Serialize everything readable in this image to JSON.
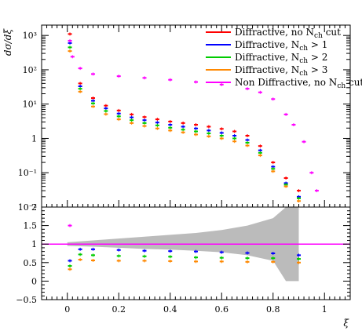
{
  "chart_data": {
    "type": "scatter",
    "top_panel": {
      "ylabel": "dσ/dξ",
      "y_scale": "log",
      "ylim": [
        0.01,
        2000
      ],
      "y_ticks": [
        {
          "value": 1000,
          "label": "10³"
        },
        {
          "value": 100,
          "label": "10²"
        },
        {
          "value": 10,
          "label": "10¹"
        },
        {
          "value": 1,
          "label": "1"
        },
        {
          "value": 0.1,
          "label": "10⁻¹"
        },
        {
          "value": 0.01,
          "label": "10⁻²"
        }
      ],
      "legend": {
        "placement": "top-right",
        "entries": [
          {
            "label": "Diffractive, no N",
            "sub": "ch",
            "suffix": " cut",
            "color": "#ff0000"
          },
          {
            "label": "Diffractive, N",
            "sub": "ch",
            "suffix": " > 1",
            "color": "#0000ff"
          },
          {
            "label": "Diffractive, N",
            "sub": "ch",
            "suffix": " > 2",
            "color": "#00cc00"
          },
          {
            "label": "Diffractive, N",
            "sub": "ch",
            "suffix": " > 3",
            "color": "#ff8800"
          },
          {
            "label": "Non Diffractive, no N",
            "sub": "ch",
            "suffix": " cut",
            "color": "#ff00ff"
          }
        ]
      },
      "series": [
        {
          "name": "Diffractive, no Nch cut",
          "color": "#ff0000",
          "x": [
            0.01,
            0.05,
            0.1,
            0.15,
            0.2,
            0.25,
            0.3,
            0.35,
            0.4,
            0.45,
            0.5,
            0.55,
            0.6,
            0.65,
            0.7,
            0.75,
            0.8,
            0.85,
            0.9
          ],
          "y": [
            1100,
            40,
            15,
            9,
            6.5,
            5,
            4.2,
            3.6,
            3.1,
            2.8,
            2.5,
            2.2,
            1.9,
            1.6,
            1.2,
            0.6,
            0.2,
            0.07,
            0.03
          ]
        },
        {
          "name": "Diffractive, Nch > 1",
          "color": "#0000ff",
          "x": [
            0.01,
            0.05,
            0.1,
            0.15,
            0.2,
            0.25,
            0.3,
            0.35,
            0.4,
            0.45,
            0.5,
            0.55,
            0.6,
            0.65,
            0.7,
            0.75,
            0.8,
            0.85,
            0.9
          ],
          "y": [
            600,
            33,
            12.5,
            7.5,
            5.3,
            4.1,
            3.4,
            2.9,
            2.5,
            2.2,
            1.95,
            1.7,
            1.45,
            1.2,
            0.9,
            0.45,
            0.15,
            0.05,
            0.02
          ]
        },
        {
          "name": "Diffractive, Nch > 2",
          "color": "#00cc00",
          "x": [
            0.01,
            0.05,
            0.1,
            0.15,
            0.2,
            0.25,
            0.3,
            0.35,
            0.4,
            0.45,
            0.5,
            0.55,
            0.6,
            0.65,
            0.7,
            0.75,
            0.8,
            0.85,
            0.9
          ],
          "y": [
            450,
            28,
            10.5,
            6.3,
            4.4,
            3.4,
            2.8,
            2.4,
            2.05,
            1.8,
            1.6,
            1.4,
            1.2,
            1.0,
            0.75,
            0.38,
            0.13,
            0.045,
            0.018
          ]
        },
        {
          "name": "Diffractive, Nch > 3",
          "color": "#ff8800",
          "x": [
            0.01,
            0.05,
            0.1,
            0.15,
            0.2,
            0.25,
            0.3,
            0.35,
            0.4,
            0.45,
            0.5,
            0.55,
            0.6,
            0.65,
            0.7,
            0.75,
            0.8,
            0.85,
            0.9
          ],
          "y": [
            350,
            23,
            8.5,
            5.1,
            3.6,
            2.8,
            2.3,
            1.95,
            1.7,
            1.5,
            1.3,
            1.15,
            1.0,
            0.82,
            0.62,
            0.32,
            0.11,
            0.04,
            0.015
          ]
        },
        {
          "name": "Non Diffractive, no Nch cut",
          "color": "#ff00ff",
          "x": [
            0.01,
            0.02,
            0.05,
            0.1,
            0.2,
            0.3,
            0.4,
            0.5,
            0.6,
            0.7,
            0.75,
            0.8,
            0.85,
            0.88,
            0.92,
            0.95,
            0.97
          ],
          "y": [
            700,
            240,
            110,
            75,
            65,
            58,
            51,
            44,
            37,
            28,
            22,
            14,
            5,
            2.5,
            0.8,
            0.1,
            0.03
          ]
        }
      ]
    },
    "ratio_panel": {
      "ylim": [
        -0.5,
        2
      ],
      "y_ticks": [
        {
          "value": -0.5,
          "label": "−0.5"
        },
        {
          "value": 0,
          "label": "0"
        },
        {
          "value": 0.5,
          "label": "0.5"
        },
        {
          "value": 1,
          "label": "1"
        },
        {
          "value": 1.5,
          "label": "1.5"
        },
        {
          "value": 2,
          "label": "2"
        }
      ],
      "reference_line": 1,
      "series": [
        {
          "name": "Diffractive, Nch > 1",
          "color": "#0000ff",
          "x": [
            0.01,
            0.05,
            0.1,
            0.2,
            0.3,
            0.4,
            0.5,
            0.6,
            0.7,
            0.8,
            0.9
          ],
          "y": [
            0.55,
            0.86,
            0.86,
            0.84,
            0.82,
            0.81,
            0.8,
            0.78,
            0.76,
            0.75,
            0.7
          ]
        },
        {
          "name": "Diffractive, Nch > 2",
          "color": "#00cc00",
          "x": [
            0.01,
            0.05,
            0.1,
            0.2,
            0.3,
            0.4,
            0.5,
            0.6,
            0.7,
            0.8,
            0.9
          ],
          "y": [
            0.41,
            0.72,
            0.7,
            0.68,
            0.67,
            0.66,
            0.64,
            0.63,
            0.62,
            0.62,
            0.6
          ]
        },
        {
          "name": "Diffractive, Nch > 3",
          "color": "#ff8800",
          "x": [
            0.01,
            0.05,
            0.1,
            0.2,
            0.3,
            0.4,
            0.5,
            0.6,
            0.7,
            0.8,
            0.9
          ],
          "y": [
            0.32,
            0.58,
            0.56,
            0.55,
            0.55,
            0.54,
            0.53,
            0.53,
            0.52,
            0.52,
            0.5
          ]
        },
        {
          "name": "Non Diffractive, no Nch cut",
          "color": "#ff00ff",
          "x": [
            0.01
          ],
          "y": [
            1.5
          ]
        }
      ],
      "band": {
        "color": "#bbbbbb",
        "x": [
          0.0,
          0.1,
          0.2,
          0.3,
          0.4,
          0.5,
          0.6,
          0.7,
          0.8,
          0.85,
          0.9
        ],
        "lower": [
          0.95,
          0.93,
          0.9,
          0.87,
          0.85,
          0.82,
          0.78,
          0.7,
          0.55,
          0.0,
          0.0
        ],
        "upper": [
          1.05,
          1.1,
          1.15,
          1.2,
          1.25,
          1.3,
          1.38,
          1.5,
          1.7,
          2.0,
          2.0
        ]
      }
    },
    "x_axis": {
      "label": "ξ",
      "xlim": [
        -0.1,
        1.1
      ],
      "ticks": [
        {
          "value": 0,
          "label": "0"
        },
        {
          "value": 0.2,
          "label": "0.2"
        },
        {
          "value": 0.4,
          "label": "0.4"
        },
        {
          "value": 0.6,
          "label": "0.6"
        },
        {
          "value": 0.8,
          "label": "0.8"
        },
        {
          "value": 1,
          "label": "1"
        }
      ]
    }
  }
}
